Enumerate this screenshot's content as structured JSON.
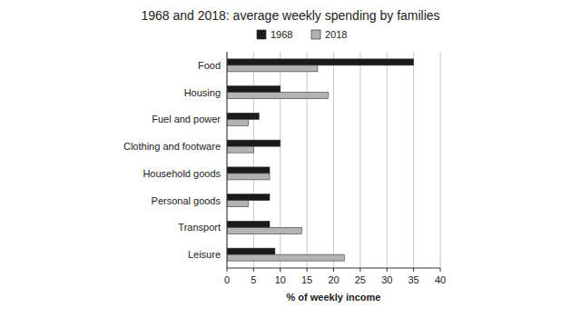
{
  "chart_data": {
    "type": "bar",
    "orientation": "horizontal",
    "title": "1968 and 2018: average weekly spending by families",
    "x_label": "% of weekly income",
    "categories": [
      "Food",
      "Housing",
      "Fuel and power",
      "Clothing and footware",
      "Household goods",
      "Personal goods",
      "Transport",
      "Leisure"
    ],
    "series": [
      {
        "name": "1968",
        "color": "#1a1a1a",
        "values": [
          35,
          10,
          6,
          10,
          8,
          8,
          8,
          9
        ]
      },
      {
        "name": "2018",
        "color": "#b3b3b3",
        "values": [
          17,
          19,
          4,
          5,
          8,
          4,
          14,
          22
        ]
      }
    ],
    "xlim": [
      0,
      40
    ],
    "xticks": [
      0,
      5,
      10,
      15,
      20,
      25,
      30,
      35,
      40
    ],
    "grid": true,
    "legend": "top"
  }
}
